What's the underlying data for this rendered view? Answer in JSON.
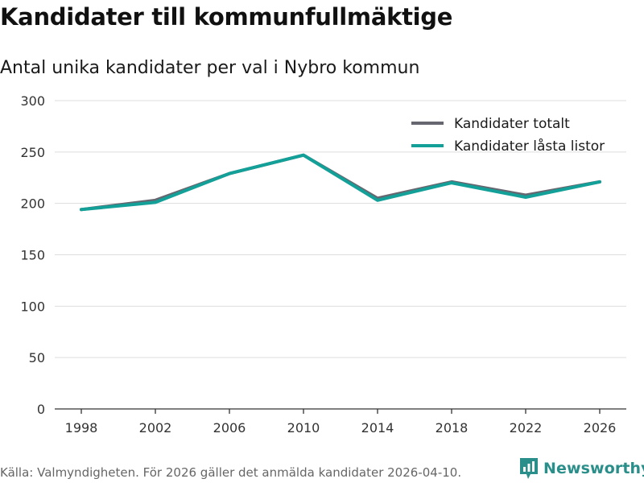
{
  "page": {
    "title": "Kandidater till kommunfullmäktige",
    "subtitle": "Antal unika kandidater per val i Nybro kommun",
    "source": "Källa: Valmyndigheten. För 2026 gäller det anmälda kandidater 2026-04-10.",
    "brand": "Newsworthy"
  },
  "colors": {
    "series_total": "#666670",
    "series_locked": "#13a098",
    "grid": "#dddddd",
    "axis": "#333333",
    "brand": "#2a8f8a"
  },
  "chart_data": {
    "type": "line",
    "title": "Kandidater till kommunfullmäktige",
    "subtitle": "Antal unika kandidater per val i Nybro kommun",
    "xlabel": "",
    "ylabel": "",
    "x": [
      "1998",
      "2002",
      "2006",
      "2010",
      "2014",
      "2018",
      "2022",
      "2026"
    ],
    "ylim": [
      0,
      300
    ],
    "yticks": [
      0,
      50,
      100,
      150,
      200,
      250,
      300
    ],
    "grid": true,
    "legend_position": "top-right",
    "series": [
      {
        "name": "Kandidater totalt",
        "color": "#666670",
        "values": [
          194,
          203,
          229,
          247,
          205,
          221,
          208,
          221
        ]
      },
      {
        "name": "Kandidater låsta listor",
        "color": "#13a098",
        "values": [
          194,
          201,
          229,
          247,
          203,
          220,
          206,
          221
        ]
      }
    ]
  }
}
